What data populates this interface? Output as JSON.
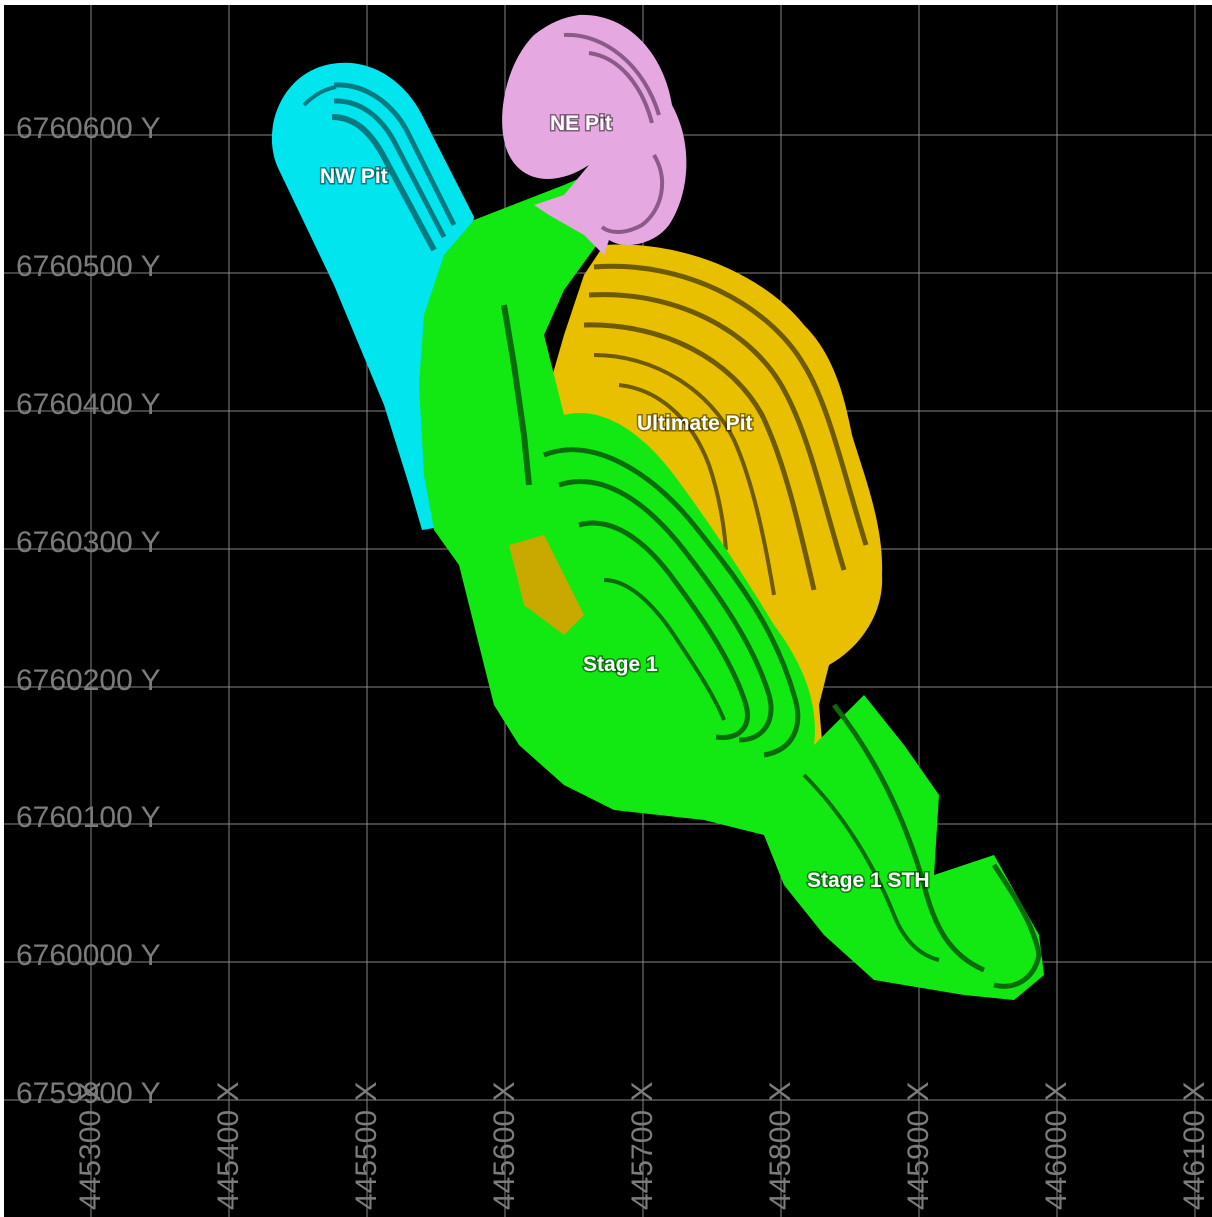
{
  "grid": {
    "northings": [
      "6760600 Y",
      "6760500 Y",
      "6760400 Y",
      "6760300 Y",
      "6760200 Y",
      "6760100 Y",
      "6760000 Y",
      "6759900 Y"
    ],
    "eastings": [
      "445300 X",
      "445400 X",
      "445500 X",
      "445600 X",
      "445700 X",
      "445800 X",
      "445900 X",
      "446000 X",
      "446100 X"
    ]
  },
  "pits": {
    "nw": {
      "label": "NW Pit",
      "color": "#00e5ee"
    },
    "ne": {
      "label": "NE Pit",
      "color": "#e5a8e0"
    },
    "ultimate": {
      "label": "Ultimate Pit",
      "color": "#e8c000"
    },
    "stage1": {
      "label": "Stage 1",
      "color": "#12e812"
    },
    "stage1_sth": {
      "label": "Stage 1 STH",
      "color": "#12e812"
    }
  },
  "colors": {
    "background": "#000000",
    "grid": "#9a9a9a",
    "axis_text": "#7c7c7c",
    "dark_green": "#0a6b0a",
    "dark_yellow": "#6e5a00",
    "dark_cyan": "#067a80",
    "dark_pink": "#8a5a88"
  }
}
